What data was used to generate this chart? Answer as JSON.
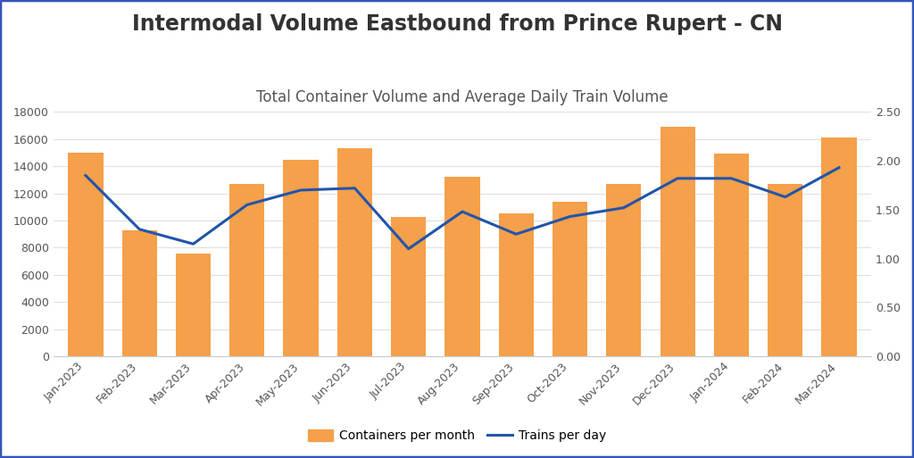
{
  "title": "Intermodal Volume Eastbound from Prince Rupert - CN",
  "subtitle": "Total Container Volume and Average Daily Train Volume",
  "categories": [
    "Jan-2023",
    "Feb-2023",
    "Mar-2023",
    "Apr-2023",
    "May-2023",
    "Jun-2023",
    "Jul-2023",
    "Aug-2023",
    "Sep-2023",
    "Oct-2023",
    "Nov-2023",
    "Dec-2023",
    "Jan-2024",
    "Feb-2024",
    "Mar-2024"
  ],
  "containers": [
    15000,
    9300,
    7600,
    12700,
    14500,
    15300,
    10250,
    13250,
    10550,
    11350,
    12700,
    16900,
    14900,
    12700,
    16100
  ],
  "trains": [
    1.85,
    1.3,
    1.15,
    1.55,
    1.7,
    1.72,
    1.1,
    1.48,
    1.25,
    1.43,
    1.52,
    1.82,
    1.82,
    1.63,
    1.93
  ],
  "bar_color": "#F5A04A",
  "line_color": "#2255AA",
  "ylim_left": [
    0,
    18000
  ],
  "ylim_right": [
    0,
    2.5
  ],
  "yticks_left": [
    0,
    2000,
    4000,
    6000,
    8000,
    10000,
    12000,
    14000,
    16000,
    18000
  ],
  "yticks_right": [
    0.0,
    0.5,
    1.0,
    1.5,
    2.0,
    2.5
  ],
  "background_color": "#ffffff",
  "grid_color": "#e0e0e0",
  "border_color": "#3355BB",
  "title_color": "#333333",
  "subtitle_color": "#555555",
  "title_fontsize": 17,
  "subtitle_fontsize": 12,
  "tick_label_fontsize": 9,
  "legend_fontsize": 10
}
